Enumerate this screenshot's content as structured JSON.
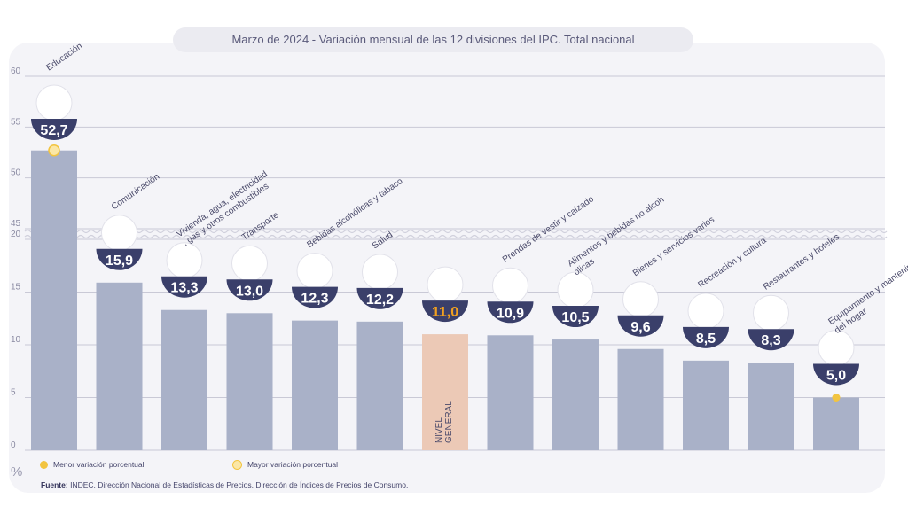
{
  "title": "Marzo de 2024 - Variación mensual de las 12 divisiones del IPC. Total nacional",
  "unit": "%",
  "legend": {
    "min": "Menor variación porcentual",
    "max": "Mayor variación porcentual"
  },
  "source_label": "Fuente:",
  "source_text": "INDEC, Dirección Nacional de Estadísticas de Precios. Dirección de Índices de Precios de Consumo.",
  "colors": {
    "bar": "#a9b1c8",
    "bar_general": "#ecc9b6",
    "badge": "#3a3f6a",
    "value": "#ffffff",
    "value_general": "#f0a020",
    "dot": "#f2c440"
  },
  "chart_data": {
    "type": "bar",
    "title": "Marzo de 2024 - Variación mensual de las 12 divisiones del IPC. Total nacional",
    "y_unit": "%",
    "axis_break": [
      20,
      45
    ],
    "yticks_lower": [
      0,
      5,
      10,
      15,
      20
    ],
    "yticks_upper": [
      45,
      50,
      55,
      60
    ],
    "grid": true,
    "categories": [
      "Educación",
      "Comunicación",
      "Vivienda, agua, electricidad, gas y otros combustibles",
      "Transporte",
      "Bebidas alcohólicas y tabaco",
      "Salud",
      "NIVEL GENERAL",
      "Prendas de vestir y calzado",
      "Alimentos y bebidas no alcohólicas",
      "Bienes y servicios varios",
      "Recreación y cultura",
      "Restaurantes y hoteles",
      "Equipamiento y mantenimiento del hogar"
    ],
    "values": [
      52.7,
      15.9,
      13.3,
      13.0,
      12.3,
      12.2,
      11.0,
      10.9,
      10.5,
      9.6,
      8.5,
      8.3,
      5.0
    ],
    "value_labels": [
      "52,7",
      "15,9",
      "13,3",
      "13,0",
      "12,3",
      "12,2",
      "11,0",
      "10,9",
      "10,5",
      "9,6",
      "8,5",
      "8,3",
      "5,0"
    ],
    "max_category": "Educación",
    "min_category": "Equipamiento y mantenimiento del hogar",
    "general_index": 6
  },
  "icons": [
    "book-icon",
    "phone-icon",
    "house-utilities-icon",
    "bus-icon",
    "bottle-icon",
    "first-aid-icon",
    "basket-icon",
    "shirt-icon",
    "food-icon",
    "comb-icon",
    "umbrella-icon",
    "cutlery-icon",
    "washing-machine-icon"
  ]
}
